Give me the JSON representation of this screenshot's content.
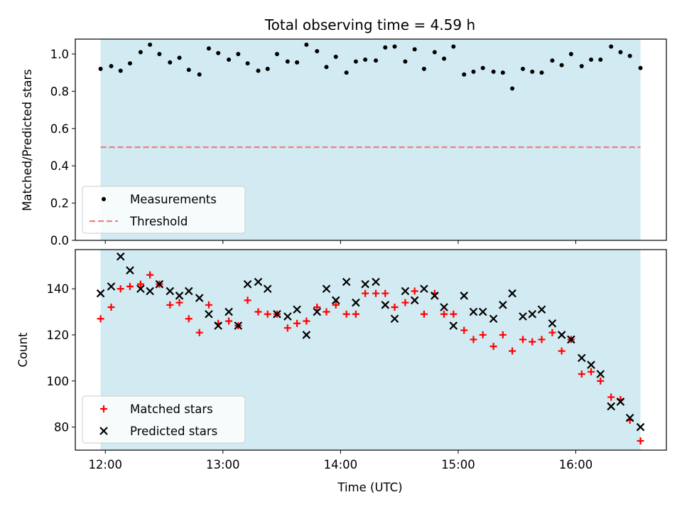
{
  "chart_data": [
    {
      "type": "scatter",
      "title": "Total observing time = 4.59 h",
      "ylabel": "Matched/Predicted stars",
      "xlabel": "",
      "ylim": [
        0,
        1.08
      ],
      "yticks": [
        0.0,
        0.2,
        0.4,
        0.6,
        0.8,
        1.0
      ],
      "yticklabels": [
        "0.0",
        "0.2",
        "0.4",
        "0.6",
        "0.8",
        "1.0"
      ],
      "xticks": [
        12,
        13,
        14,
        15,
        16
      ],
      "xticklabels": [],
      "shaded_interval": [
        11.96,
        16.55
      ],
      "shade_color": "#add8e6",
      "legend": "lower-left",
      "series": [
        {
          "name": "Measurements",
          "marker": "dot",
          "color": "#000000",
          "x": [
            11.96,
            12.05,
            12.13,
            12.21,
            12.3,
            12.38,
            12.46,
            12.55,
            12.63,
            12.71,
            12.8,
            12.88,
            12.96,
            13.05,
            13.13,
            13.21,
            13.3,
            13.38,
            13.46,
            13.55,
            13.63,
            13.71,
            13.8,
            13.88,
            13.96,
            14.05,
            14.13,
            14.21,
            14.3,
            14.38,
            14.46,
            14.55,
            14.63,
            14.71,
            14.8,
            14.88,
            14.96,
            15.05,
            15.13,
            15.21,
            15.3,
            15.38,
            15.46,
            15.55,
            15.63,
            15.71,
            15.8,
            15.88,
            15.96,
            16.05,
            16.13,
            16.21,
            16.3,
            16.38,
            16.46,
            16.55
          ],
          "y": [
            0.92,
            0.935,
            0.91,
            0.95,
            1.01,
            1.05,
            1.0,
            0.955,
            0.98,
            0.915,
            0.89,
            1.03,
            1.005,
            0.97,
            1.0,
            0.95,
            0.91,
            0.92,
            1.0,
            0.96,
            0.955,
            1.05,
            1.015,
            0.93,
            0.985,
            0.9,
            0.96,
            0.97,
            0.965,
            1.035,
            1.04,
            0.96,
            1.025,
            0.92,
            1.01,
            0.975,
            1.04,
            0.89,
            0.905,
            0.925,
            0.905,
            0.9,
            0.815,
            0.92,
            0.905,
            0.9,
            0.965,
            0.94,
            1.0,
            0.935,
            0.97,
            0.97,
            1.04,
            1.01,
            0.99,
            0.925
          ]
        },
        {
          "name": "Threshold",
          "marker": "dashed-line",
          "color": "#f08080",
          "y_value": 0.5
        }
      ]
    },
    {
      "type": "scatter",
      "title": "",
      "xlabel": "Time (UTC)",
      "ylabel": "Count",
      "ylim": [
        70,
        157
      ],
      "yticks": [
        80,
        100,
        120,
        140
      ],
      "yticklabels": [
        "80",
        "100",
        "120",
        "140"
      ],
      "xticks": [
        12,
        13,
        14,
        15,
        16
      ],
      "xticklabels": [
        "12:00",
        "13:00",
        "14:00",
        "15:00",
        "16:00"
      ],
      "shaded_interval": [
        11.96,
        16.55
      ],
      "shade_color": "#add8e6",
      "legend": "lower-left",
      "series": [
        {
          "name": "Matched stars",
          "marker": "plus",
          "color": "#ff0000",
          "x": [
            11.96,
            12.05,
            12.13,
            12.21,
            12.3,
            12.38,
            12.46,
            12.55,
            12.63,
            12.71,
            12.8,
            12.88,
            12.96,
            13.05,
            13.13,
            13.21,
            13.3,
            13.38,
            13.46,
            13.55,
            13.63,
            13.71,
            13.8,
            13.88,
            13.96,
            14.05,
            14.13,
            14.21,
            14.3,
            14.38,
            14.46,
            14.55,
            14.63,
            14.71,
            14.8,
            14.88,
            14.96,
            15.05,
            15.13,
            15.21,
            15.3,
            15.38,
            15.46,
            15.55,
            15.63,
            15.71,
            15.8,
            15.88,
            15.96,
            16.05,
            16.13,
            16.21,
            16.3,
            16.38,
            16.46,
            16.55
          ],
          "y": [
            127,
            132,
            140,
            141,
            142,
            146,
            142,
            133,
            134,
            127,
            121,
            133,
            125,
            126,
            124,
            135,
            130,
            129,
            129,
            123,
            125,
            126,
            132,
            130,
            133,
            129,
            129,
            138,
            138,
            138,
            132,
            134,
            139,
            129,
            138,
            129,
            129,
            122,
            118,
            120,
            115,
            120,
            113,
            118,
            117,
            118,
            121,
            113,
            118,
            103,
            104,
            100,
            93,
            92,
            83,
            74
          ]
        },
        {
          "name": "Predicted stars",
          "marker": "x",
          "color": "#000000",
          "x": [
            11.96,
            12.05,
            12.13,
            12.21,
            12.3,
            12.38,
            12.46,
            12.55,
            12.63,
            12.71,
            12.8,
            12.88,
            12.96,
            13.05,
            13.13,
            13.21,
            13.3,
            13.38,
            13.46,
            13.55,
            13.63,
            13.71,
            13.8,
            13.88,
            13.96,
            14.05,
            14.13,
            14.21,
            14.3,
            14.38,
            14.46,
            14.55,
            14.63,
            14.71,
            14.8,
            14.88,
            14.96,
            15.05,
            15.13,
            15.21,
            15.3,
            15.38,
            15.46,
            15.55,
            15.63,
            15.71,
            15.8,
            15.88,
            15.96,
            16.05,
            16.13,
            16.21,
            16.3,
            16.38,
            16.46,
            16.55
          ],
          "y": [
            138,
            141,
            154,
            148,
            140,
            139,
            142,
            139,
            137,
            139,
            136,
            129,
            124,
            130,
            124,
            142,
            143,
            140,
            129,
            128,
            131,
            120,
            130,
            140,
            135,
            143,
            134,
            142,
            143,
            133,
            127,
            139,
            135,
            140,
            137,
            132,
            124,
            137,
            130,
            130,
            127,
            133,
            138,
            128,
            129,
            131,
            125,
            120,
            118,
            110,
            107,
            103,
            89,
            91,
            84,
            80
          ]
        }
      ]
    }
  ]
}
